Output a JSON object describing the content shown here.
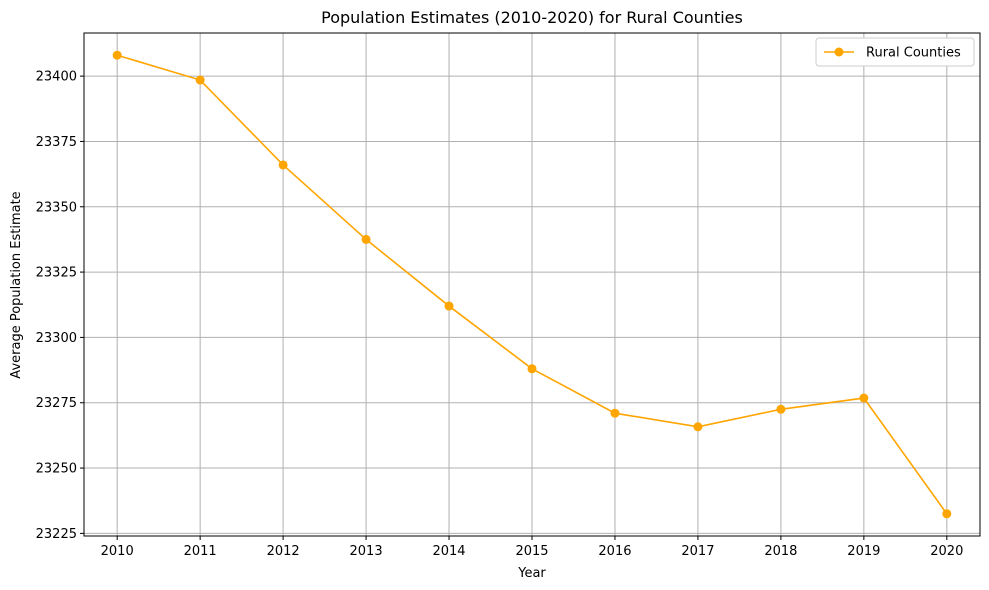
{
  "chart_data": {
    "type": "line",
    "title": "Population Estimates (2010-2020) for Rural Counties",
    "xlabel": "Year",
    "ylabel": "Average Population Estimate",
    "x": [
      2010,
      2011,
      2012,
      2013,
      2014,
      2015,
      2016,
      2017,
      2018,
      2019,
      2020
    ],
    "series": [
      {
        "name": "Rural Counties",
        "color": "#ffa500",
        "marker": "circle",
        "values": [
          23408.0,
          23398.5,
          23366.0,
          23337.5,
          23312.0,
          23288.0,
          23271.0,
          23265.8,
          23272.5,
          23276.8,
          23232.5
        ]
      }
    ],
    "xlim": [
      2009.6,
      2020.4
    ],
    "ylim": [
      23224,
      23416.5
    ],
    "yticks": [
      23225,
      23250,
      23275,
      23300,
      23325,
      23350,
      23375,
      23400
    ],
    "xticks": [
      2010,
      2011,
      2012,
      2013,
      2014,
      2015,
      2016,
      2017,
      2018,
      2019,
      2020
    ],
    "grid": true,
    "legend_position": "top-right"
  }
}
